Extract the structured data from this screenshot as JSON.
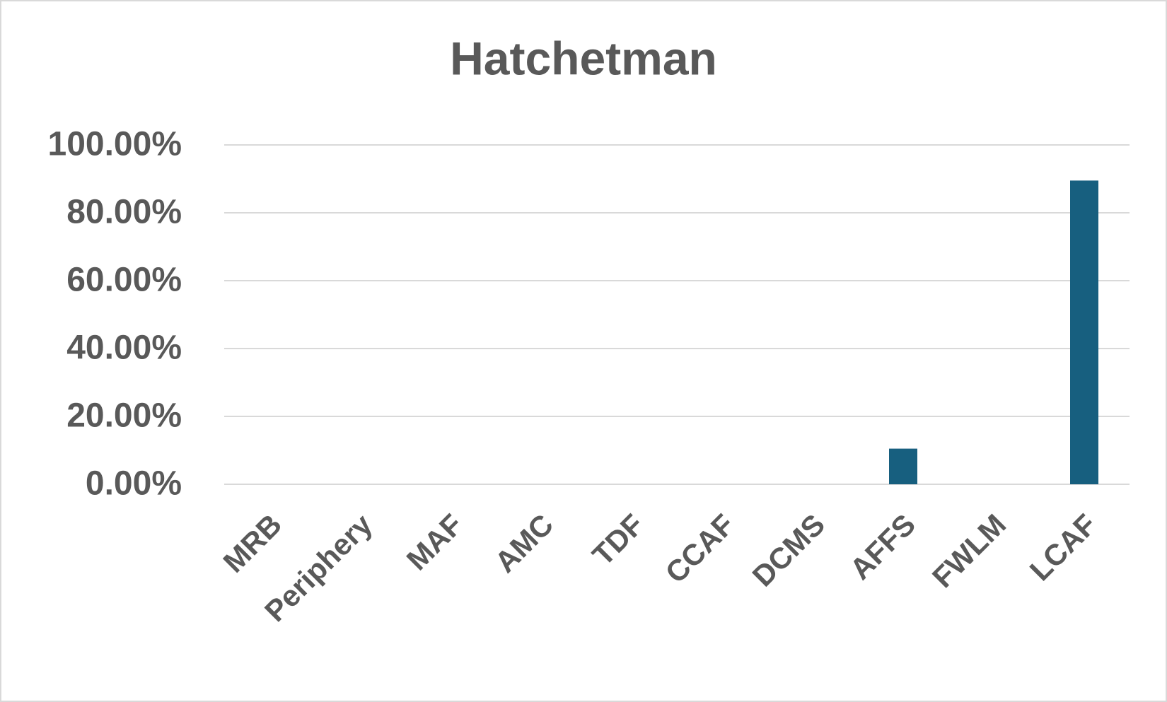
{
  "chart_data": {
    "type": "bar",
    "title": "Hatchetman",
    "categories": [
      "MRB",
      "Periphery",
      "MAF",
      "AMC",
      "TDF",
      "CCAF",
      "DCMS",
      "AFFS",
      "FWLM",
      "LCAF"
    ],
    "values": [
      0,
      0,
      0,
      0,
      0,
      0,
      0,
      10.5,
      0,
      89.5
    ],
    "color": "#175f7f",
    "ylim": [
      0,
      100
    ],
    "yticks": [
      {
        "value": 0,
        "label": "0.00%"
      },
      {
        "value": 20,
        "label": "20.00%"
      },
      {
        "value": 40,
        "label": "40.00%"
      },
      {
        "value": 60,
        "label": "60.00%"
      },
      {
        "value": 80,
        "label": "80.00%"
      },
      {
        "value": 100,
        "label": "100.00%"
      }
    ],
    "grid": true
  }
}
